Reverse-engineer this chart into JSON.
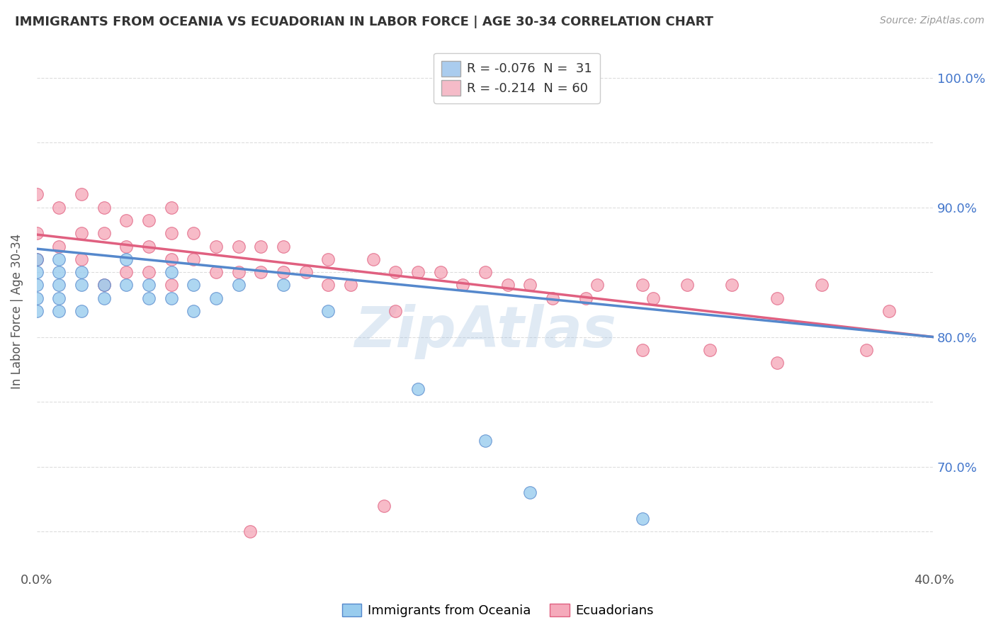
{
  "title": "IMMIGRANTS FROM OCEANIA VS ECUADORIAN IN LABOR FORCE | AGE 30-34 CORRELATION CHART",
  "source": "Source: ZipAtlas.com",
  "ylabel": "In Labor Force | Age 30-34",
  "xlim": [
    0.0,
    0.4
  ],
  "ylim": [
    0.62,
    1.02
  ],
  "legend1_label": "R = -0.076  N =  31",
  "legend2_label": "R = -0.214  N = 60",
  "legend1_color": "#aaccee",
  "legend2_color": "#f5bbc8",
  "line1_color": "#5588cc",
  "line2_color": "#e06080",
  "scatter1_facecolor": "#99ccee",
  "scatter2_facecolor": "#f5aabb",
  "watermark": "ZipAtlas",
  "background_color": "#ffffff",
  "grid_color": "#dddddd",
  "title_color": "#333333",
  "right_tick_color": "#4477cc",
  "oceania_x": [
    0.0,
    0.0,
    0.0,
    0.0,
    0.0,
    0.01,
    0.01,
    0.01,
    0.01,
    0.01,
    0.02,
    0.02,
    0.02,
    0.03,
    0.03,
    0.04,
    0.04,
    0.05,
    0.05,
    0.06,
    0.06,
    0.07,
    0.07,
    0.08,
    0.09,
    0.11,
    0.13,
    0.17,
    0.2,
    0.22,
    0.27
  ],
  "oceania_y": [
    0.86,
    0.85,
    0.84,
    0.83,
    0.82,
    0.86,
    0.85,
    0.84,
    0.83,
    0.82,
    0.85,
    0.84,
    0.82,
    0.84,
    0.83,
    0.86,
    0.84,
    0.84,
    0.83,
    0.85,
    0.83,
    0.84,
    0.82,
    0.83,
    0.84,
    0.84,
    0.82,
    0.76,
    0.72,
    0.68,
    0.66
  ],
  "ecuadorian_x": [
    0.0,
    0.0,
    0.0,
    0.01,
    0.01,
    0.02,
    0.02,
    0.02,
    0.03,
    0.03,
    0.03,
    0.04,
    0.04,
    0.04,
    0.05,
    0.05,
    0.05,
    0.06,
    0.06,
    0.06,
    0.06,
    0.07,
    0.07,
    0.08,
    0.08,
    0.09,
    0.09,
    0.1,
    0.1,
    0.11,
    0.11,
    0.12,
    0.13,
    0.13,
    0.14,
    0.15,
    0.16,
    0.17,
    0.18,
    0.19,
    0.2,
    0.21,
    0.22,
    0.23,
    0.25,
    0.27,
    0.29,
    0.31,
    0.33,
    0.35,
    0.37,
    0.38,
    0.095,
    0.155,
    0.245,
    0.275,
    0.16,
    0.27,
    0.3,
    0.33
  ],
  "ecuadorian_y": [
    0.91,
    0.88,
    0.86,
    0.9,
    0.87,
    0.91,
    0.88,
    0.86,
    0.9,
    0.88,
    0.84,
    0.89,
    0.87,
    0.85,
    0.89,
    0.87,
    0.85,
    0.9,
    0.88,
    0.86,
    0.84,
    0.88,
    0.86,
    0.87,
    0.85,
    0.87,
    0.85,
    0.87,
    0.85,
    0.87,
    0.85,
    0.85,
    0.86,
    0.84,
    0.84,
    0.86,
    0.85,
    0.85,
    0.85,
    0.84,
    0.85,
    0.84,
    0.84,
    0.83,
    0.84,
    0.84,
    0.84,
    0.84,
    0.83,
    0.84,
    0.79,
    0.82,
    0.65,
    0.67,
    0.83,
    0.83,
    0.82,
    0.79,
    0.79,
    0.78
  ]
}
